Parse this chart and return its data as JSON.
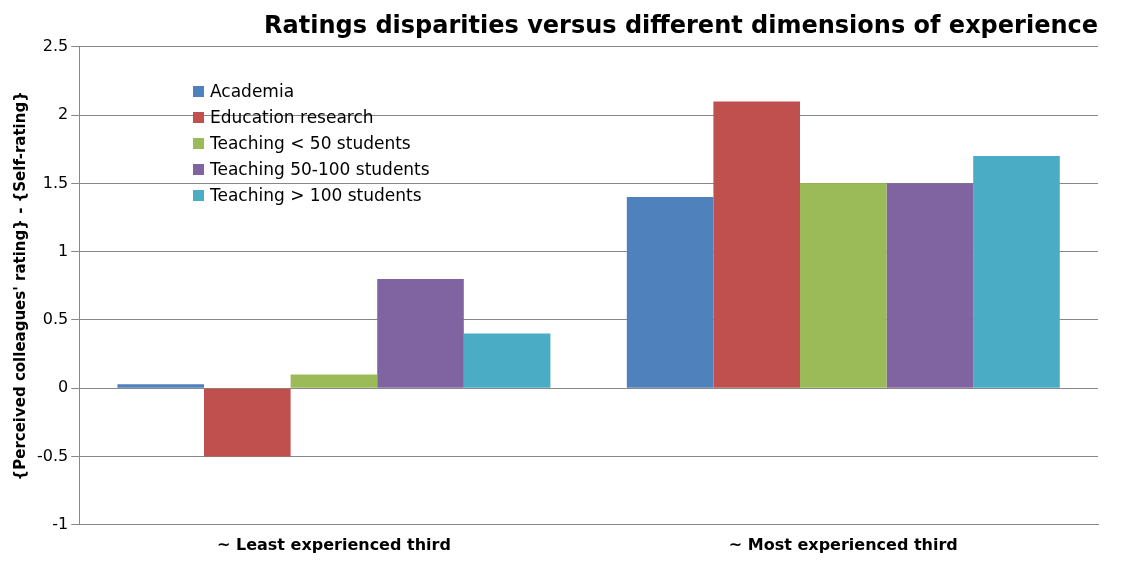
{
  "chart_data": {
    "type": "bar",
    "title": "Ratings disparities versus different dimensions of experience",
    "ylabel": "{Perceived colleagues' rating} - {Self-rating}",
    "categories": [
      "~ Least experienced third",
      "~ Most experienced third"
    ],
    "series": [
      {
        "name": "Academia",
        "color": "#4f81bd",
        "values": [
          0.03,
          1.4
        ]
      },
      {
        "name": "Education research",
        "color": "#c0504d",
        "values": [
          -0.5,
          2.1
        ]
      },
      {
        "name": "Teaching < 50 students",
        "color": "#9bbb59",
        "values": [
          0.1,
          1.5
        ]
      },
      {
        "name": "Teaching 50-100 students",
        "color": "#8064a2",
        "values": [
          0.8,
          1.5
        ]
      },
      {
        "name": "Teaching > 100 students",
        "color": "#4bacc6",
        "values": [
          0.4,
          1.7
        ]
      }
    ],
    "ylim": [
      -1,
      2.5
    ],
    "yticks": [
      -1,
      -0.5,
      0,
      0.5,
      1,
      1.5,
      2,
      2.5
    ],
    "grid": "y",
    "legend": "top left"
  }
}
